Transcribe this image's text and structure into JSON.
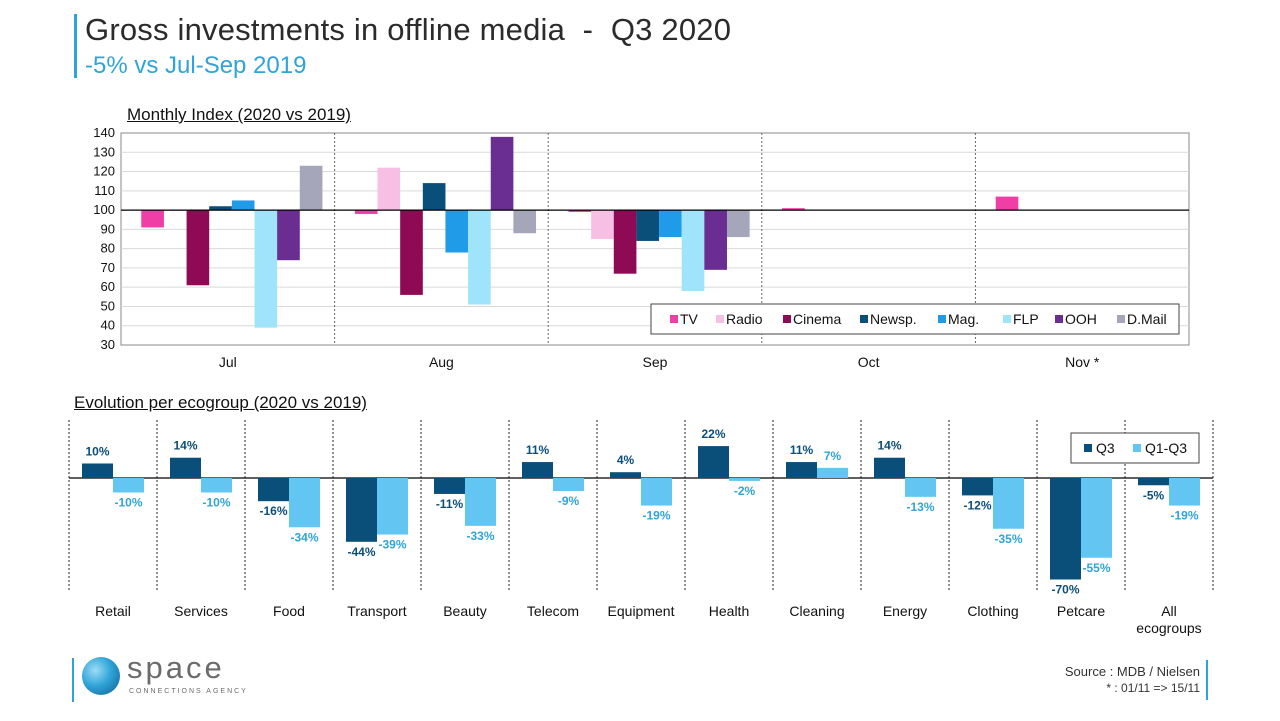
{
  "header": {
    "title": "Gross investments in offline media  -  Q3 2020",
    "subtitle": "-5% vs Jul-Sep 2019"
  },
  "colors": {
    "accent": "#2fa4d9",
    "TV": "#ef3fa6",
    "Radio": "#f7bfe3",
    "Cinema": "#8f0a55",
    "Newsp.": "#0a4e7a",
    "Mag.": "#1f9be8",
    "FLP": "#a0e4fb",
    "OOH": "#6a2d91",
    "D.Mail": "#a6a6ba",
    "Q3": "#0a4e7a",
    "Q1-Q3": "#63c5f2"
  },
  "chart_data": [
    {
      "type": "bar",
      "title": "Monthly Index (2020 vs 2019)",
      "categories": [
        "Jul",
        "Aug",
        "Sep",
        "Oct",
        "Nov *"
      ],
      "baseline": 100,
      "ylim": [
        30,
        140
      ],
      "yticks": [
        30,
        40,
        50,
        60,
        70,
        80,
        90,
        100,
        110,
        120,
        130,
        140
      ],
      "grid": true,
      "legend_position": "bottom-right",
      "series": [
        {
          "name": "TV",
          "values": [
            91,
            98,
            99,
            101,
            107
          ]
        },
        {
          "name": "Radio",
          "values": [
            100,
            122,
            85,
            null,
            null
          ]
        },
        {
          "name": "Cinema",
          "values": [
            61,
            56,
            67,
            null,
            null
          ]
        },
        {
          "name": "Newsp.",
          "values": [
            102,
            114,
            84,
            null,
            null
          ]
        },
        {
          "name": "Mag.",
          "values": [
            105,
            78,
            86,
            null,
            null
          ]
        },
        {
          "name": "FLP",
          "values": [
            39,
            51,
            58,
            null,
            null
          ]
        },
        {
          "name": "OOH",
          "values": [
            74,
            138,
            69,
            null,
            null
          ]
        },
        {
          "name": "D.Mail",
          "values": [
            123,
            88,
            86,
            null,
            null
          ]
        }
      ]
    },
    {
      "type": "bar",
      "title": "Evolution per ecogroup (2020 vs 2019)",
      "categories": [
        "Retail",
        "Services",
        "Food",
        "Transport",
        "Beauty",
        "Telecom",
        "Equipment",
        "Health",
        "Cleaning",
        "Energy",
        "Clothing",
        "Petcare",
        "All ecogroups"
      ],
      "legend_position": "top-right",
      "series": [
        {
          "name": "Q3",
          "values": [
            10,
            14,
            -16,
            -44,
            -11,
            11,
            4,
            22,
            11,
            14,
            -12,
            -70,
            -5
          ],
          "labels": [
            "10%",
            "14%",
            "-16%",
            "-44%",
            "-11%",
            "11%",
            "4%",
            "22%",
            "11%",
            "14%",
            "-12%",
            "-70%",
            "-5%"
          ]
        },
        {
          "name": "Q1-Q3",
          "values": [
            -10,
            -10,
            -34,
            -39,
            -33,
            -9,
            -19,
            -2,
            7,
            -13,
            -35,
            -55,
            -19
          ],
          "labels": [
            "-10%",
            "-10%",
            "-34%",
            "-39%",
            "-33%",
            "-9%",
            "-19%",
            "-2%",
            "7%",
            "-13%",
            "-35%",
            "-55%",
            "-19%"
          ]
        }
      ]
    }
  ],
  "footer": {
    "logo_text": "space",
    "logo_sub": "CONNECTIONS AGENCY",
    "source": "Source : MDB / Nielsen",
    "note": "* : 01/11 => 15/11"
  }
}
